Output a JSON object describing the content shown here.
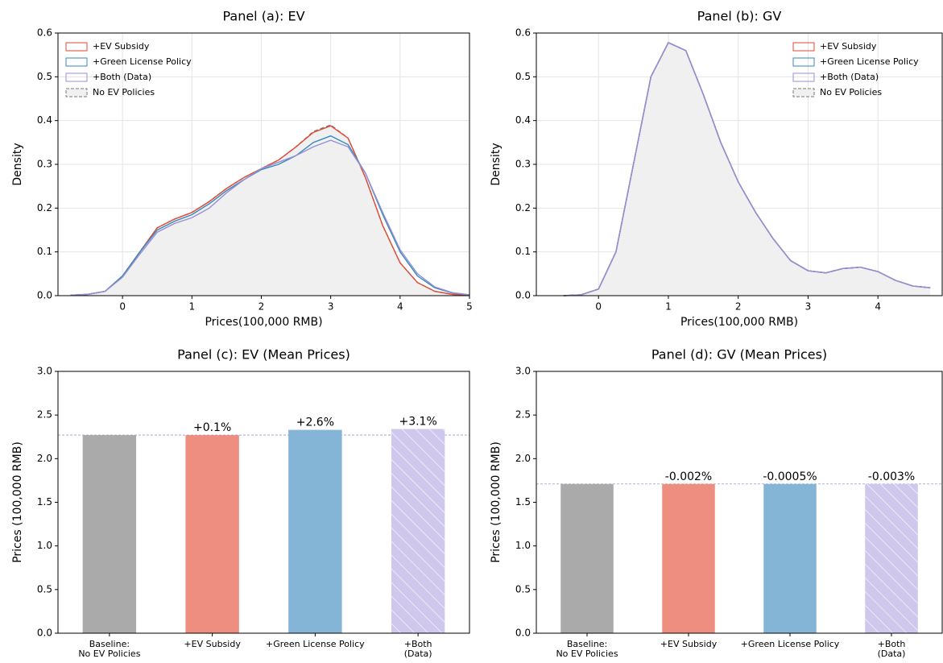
{
  "chart_data": [
    {
      "type": "line",
      "title": "Panel (a): EV",
      "xlabel": "Prices(100,000 RMB)",
      "ylabel": "Density",
      "x": [
        -0.75,
        -0.5,
        -0.25,
        0,
        0.25,
        0.5,
        0.75,
        1,
        1.25,
        1.5,
        1.75,
        2,
        2.25,
        2.5,
        2.75,
        3,
        3.25,
        3.5,
        3.75,
        4,
        4.25,
        4.5,
        4.75,
        5
      ],
      "series": [
        {
          "name": "+EV Subsidy",
          "color": "#e24a33",
          "values": [
            0.001,
            0.003,
            0.01,
            0.045,
            0.1,
            0.155,
            0.175,
            0.19,
            0.215,
            0.245,
            0.27,
            0.29,
            0.31,
            0.34,
            0.373,
            0.388,
            0.36,
            0.27,
            0.16,
            0.075,
            0.03,
            0.01,
            0.003,
            0.001
          ]
        },
        {
          "name": "+Green License Policy",
          "color": "#348abd",
          "values": [
            0.001,
            0.003,
            0.01,
            0.045,
            0.1,
            0.15,
            0.17,
            0.185,
            0.21,
            0.24,
            0.265,
            0.288,
            0.3,
            0.32,
            0.35,
            0.365,
            0.345,
            0.28,
            0.185,
            0.1,
            0.045,
            0.018,
            0.006,
            0.002
          ]
        },
        {
          "name": "+Both (Data)",
          "color": "#988ed5",
          "values": [
            0.001,
            0.003,
            0.01,
            0.042,
            0.095,
            0.145,
            0.165,
            0.178,
            0.2,
            0.235,
            0.265,
            0.29,
            0.305,
            0.32,
            0.34,
            0.355,
            0.34,
            0.28,
            0.19,
            0.105,
            0.05,
            0.02,
            0.007,
            0.002
          ]
        },
        {
          "name": "No EV Policies",
          "color": "#777777",
          "dashed": true,
          "fill": "#f0f0f0",
          "values": [
            0.001,
            0.003,
            0.01,
            0.045,
            0.1,
            0.155,
            0.175,
            0.19,
            0.215,
            0.245,
            0.27,
            0.29,
            0.31,
            0.34,
            0.375,
            0.39,
            0.36,
            0.27,
            0.16,
            0.075,
            0.03,
            0.01,
            0.003,
            0.001
          ]
        }
      ],
      "xlim": [
        -0.93,
        5
      ],
      "xticks": [
        0,
        1,
        2,
        3,
        4,
        5
      ],
      "ylim": [
        0,
        0.6
      ],
      "yticks": [
        {
          "value": 0,
          "label": "0.0"
        },
        0.1,
        0.2,
        0.3,
        0.4,
        0.5,
        0.6
      ],
      "grid": true,
      "legend": "upper left"
    },
    {
      "type": "line",
      "title": "Panel (b): GV",
      "xlabel": "Prices(100,000 RMB)",
      "ylabel": "Density",
      "x": [
        -0.5,
        -0.25,
        0,
        0.25,
        0.5,
        0.75,
        1,
        1.25,
        1.5,
        1.75,
        2,
        2.25,
        2.5,
        2.75,
        3,
        3.25,
        3.5,
        3.75,
        4,
        4.25,
        4.5,
        4.75
      ],
      "series": [
        {
          "name": "+EV Subsidy",
          "color": "#e24a33",
          "values": [
            0,
            0.002,
            0.015,
            0.1,
            0.3,
            0.5,
            0.578,
            0.56,
            0.46,
            0.35,
            0.26,
            0.19,
            0.13,
            0.08,
            0.057,
            0.052,
            0.062,
            0.065,
            0.055,
            0.035,
            0.022,
            0.018
          ]
        },
        {
          "name": "+Green License Policy",
          "color": "#348abd",
          "values": [
            0,
            0.002,
            0.015,
            0.1,
            0.3,
            0.5,
            0.578,
            0.56,
            0.46,
            0.35,
            0.26,
            0.19,
            0.13,
            0.08,
            0.057,
            0.052,
            0.062,
            0.065,
            0.055,
            0.035,
            0.022,
            0.018
          ]
        },
        {
          "name": "+Both (Data)",
          "color": "#988ed5",
          "values": [
            0,
            0.002,
            0.015,
            0.1,
            0.3,
            0.5,
            0.578,
            0.56,
            0.46,
            0.35,
            0.26,
            0.19,
            0.13,
            0.08,
            0.057,
            0.052,
            0.062,
            0.065,
            0.055,
            0.035,
            0.022,
            0.018
          ]
        },
        {
          "name": "No EV Policies",
          "color": "#777777",
          "dashed": true,
          "fill": "#f0f0f0",
          "values": [
            0,
            0.002,
            0.015,
            0.1,
            0.3,
            0.5,
            0.578,
            0.56,
            0.46,
            0.35,
            0.26,
            0.19,
            0.13,
            0.08,
            0.057,
            0.052,
            0.062,
            0.065,
            0.055,
            0.035,
            0.022,
            0.018
          ]
        }
      ],
      "xlim": [
        -0.89,
        4.92
      ],
      "xticks": [
        0,
        1,
        2,
        3,
        4
      ],
      "ylim": [
        0,
        0.6
      ],
      "yticks": [
        {
          "value": 0,
          "label": "0.0"
        },
        0.1,
        0.2,
        0.3,
        0.4,
        0.5,
        0.6
      ],
      "grid": true,
      "legend": "upper right"
    },
    {
      "type": "bar",
      "title": "Panel (c): EV (Mean Prices)",
      "ylabel": "Prices (100,000 RMB)",
      "categories": [
        "Baseline:\nNo EV Policies",
        "+EV Subsidy",
        "+Green License Policy",
        "+Both\n(Data)"
      ],
      "values": [
        2.27,
        2.27,
        2.33,
        2.34
      ],
      "annotations": [
        null,
        "+0.1%",
        "+2.6%",
        "+3.1%"
      ],
      "colors": [
        "#aaaaaa",
        "#ee8e80",
        "#84b5d6",
        "#cfc8ec"
      ],
      "hatch": [
        false,
        false,
        false,
        true
      ],
      "reference_line": true,
      "ylim": [
        0,
        3
      ],
      "yticks": [
        {
          "value": 0,
          "label": "0.0"
        },
        0.5,
        {
          "value": 1,
          "label": "1.0"
        },
        1.5,
        {
          "value": 2,
          "label": "2.0"
        },
        2.5,
        {
          "value": 3,
          "label": "3.0"
        }
      ]
    },
    {
      "type": "bar",
      "title": "Panel (d): GV (Mean Prices)",
      "ylabel": "Prices (100,000 RMB)",
      "categories": [
        "Baseline:\nNo EV Policies",
        "+EV Subsidy",
        "+Green License Policy",
        "+Both\n(Data)"
      ],
      "values": [
        1.71,
        1.71,
        1.71,
        1.71
      ],
      "annotations": [
        null,
        "-0.002%",
        "-0.0005%",
        "-0.003%"
      ],
      "colors": [
        "#aaaaaa",
        "#ee8e80",
        "#84b5d6",
        "#cfc8ec"
      ],
      "hatch": [
        false,
        false,
        false,
        true
      ],
      "reference_line": true,
      "ylim": [
        0,
        3
      ],
      "yticks": [
        {
          "value": 0,
          "label": "0.0"
        },
        0.5,
        {
          "value": 1,
          "label": "1.0"
        },
        1.5,
        {
          "value": 2,
          "label": "2.0"
        },
        2.5,
        {
          "value": 3,
          "label": "3.0"
        }
      ]
    }
  ]
}
